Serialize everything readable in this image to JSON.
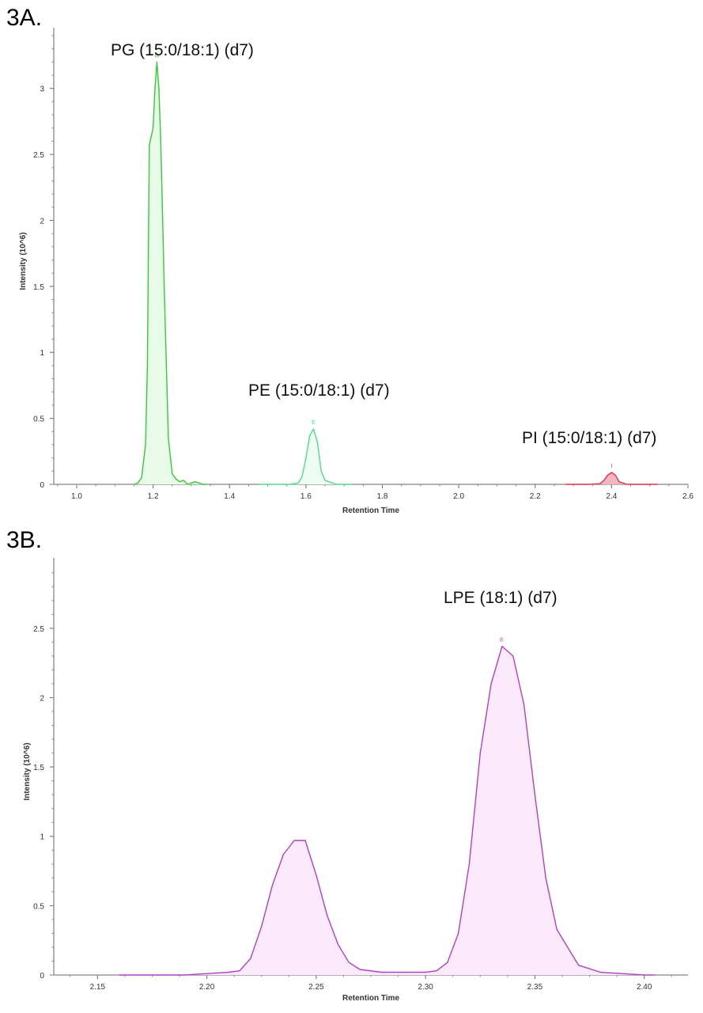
{
  "chart_data": [
    {
      "panel_label": "3A.",
      "type": "line",
      "xlabel": "Retention Time",
      "ylabel": "Intensity (10^6)",
      "xlim": [
        0.94,
        2.6
      ],
      "ylim": [
        0,
        3.4
      ],
      "x_ticks": [
        "1.0",
        "1.2",
        "1.4",
        "1.6",
        "1.8",
        "2.0",
        "2.2",
        "2.4",
        "2.6"
      ],
      "y_ticks": [
        "0",
        "0.5",
        "1",
        "1.5",
        "2",
        "2.5",
        "3"
      ],
      "fill_under": true,
      "series": [
        {
          "label": "PG (15:0/18:1) (d7)",
          "apex_marker": "G",
          "color": "#33cc33",
          "fill": "#e8fae8",
          "x": [
            1.15,
            1.16,
            1.17,
            1.18,
            1.185,
            1.19,
            1.2,
            1.205,
            1.21,
            1.215,
            1.22,
            1.23,
            1.24,
            1.25,
            1.26,
            1.27,
            1.28,
            1.29,
            1.3,
            1.31,
            1.32,
            1.33,
            1.34
          ],
          "y": [
            0,
            0.01,
            0.05,
            0.3,
            0.9,
            2.57,
            2.7,
            3.0,
            3.2,
            3.0,
            2.6,
            1.4,
            0.35,
            0.08,
            0.04,
            0.02,
            0.03,
            0.0,
            0.01,
            0.02,
            0.01,
            0.0,
            0.0
          ]
        },
        {
          "label": "PE (15:0/18:1) (d7)",
          "apex_marker": "E",
          "color": "#4fdc8a",
          "fill": "#eefcf4",
          "x": [
            1.48,
            1.52,
            1.56,
            1.58,
            1.59,
            1.6,
            1.61,
            1.62,
            1.63,
            1.64,
            1.65,
            1.66,
            1.68,
            1.7,
            1.72
          ],
          "y": [
            0,
            0,
            0,
            0.01,
            0.06,
            0.2,
            0.37,
            0.42,
            0.32,
            0.1,
            0.03,
            0.02,
            0.0,
            0.0,
            0.0
          ]
        },
        {
          "label": "PI (15:0/18:1) (d7)",
          "apex_marker": "I",
          "color": "#d9334f",
          "fill": "#f4b4c0",
          "x": [
            2.28,
            2.3,
            2.34,
            2.37,
            2.38,
            2.39,
            2.4,
            2.41,
            2.42,
            2.44,
            2.47,
            2.52
          ],
          "y": [
            0,
            0,
            0,
            0.005,
            0.03,
            0.07,
            0.09,
            0.07,
            0.02,
            0.0,
            0.0,
            0.0
          ]
        }
      ]
    },
    {
      "panel_label": "3B.",
      "type": "line",
      "xlabel": "Retention Time",
      "ylabel": "Intensity (10^6)",
      "xlim": [
        2.13,
        2.42
      ],
      "ylim": [
        0,
        2.95
      ],
      "x_ticks": [
        "2.15",
        "2.20",
        "2.25",
        "2.30",
        "2.35",
        "2.40"
      ],
      "y_ticks": [
        "0",
        "0.5",
        "1",
        "1.5",
        "2",
        "2.5"
      ],
      "fill_under": true,
      "series": [
        {
          "label": "LPE (18:1) (d7)",
          "apex_marker": "8:",
          "color": "#b040c8",
          "fill": "#fbeafb",
          "x": [
            2.16,
            2.17,
            2.18,
            2.19,
            2.2,
            2.21,
            2.215,
            2.22,
            2.225,
            2.23,
            2.235,
            2.24,
            2.245,
            2.25,
            2.255,
            2.26,
            2.265,
            2.27,
            2.28,
            2.29,
            2.3,
            2.305,
            2.31,
            2.315,
            2.32,
            2.325,
            2.33,
            2.335,
            2.34,
            2.345,
            2.35,
            2.355,
            2.36,
            2.37,
            2.38,
            2.39,
            2.4,
            2.405
          ],
          "y": [
            0,
            0,
            0,
            0,
            0.01,
            0.02,
            0.03,
            0.12,
            0.35,
            0.65,
            0.87,
            0.97,
            0.97,
            0.72,
            0.43,
            0.22,
            0.09,
            0.04,
            0.02,
            0.02,
            0.02,
            0.03,
            0.09,
            0.3,
            0.8,
            1.6,
            2.1,
            2.37,
            2.3,
            1.95,
            1.3,
            0.7,
            0.33,
            0.07,
            0.02,
            0.01,
            0.0,
            0.0
          ]
        }
      ]
    }
  ]
}
